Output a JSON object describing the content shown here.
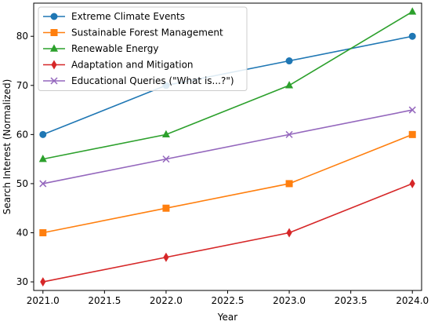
{
  "chart_data": {
    "type": "line",
    "title": "",
    "xlabel": "Year",
    "ylabel": "Search Interest (Normalized)",
    "x": [
      2021,
      2022,
      2023,
      2024
    ],
    "xlim": [
      2020.925,
      2024.075
    ],
    "ylim": [
      28.25,
      86.75
    ],
    "xticks": [
      2021.0,
      2021.5,
      2022.0,
      2022.5,
      2023.0,
      2023.5,
      2024.0
    ],
    "xtick_labels": [
      "2021.0",
      "2021.5",
      "2022.0",
      "2022.5",
      "2023.0",
      "2023.5",
      "2024.0"
    ],
    "yticks": [
      30,
      40,
      50,
      60,
      70,
      80
    ],
    "ytick_labels": [
      "30",
      "40",
      "50",
      "60",
      "70",
      "80"
    ],
    "grid": false,
    "legend_position": "top-left",
    "series": [
      {
        "name": "Extreme Climate Events",
        "values": [
          60,
          70,
          75,
          80
        ],
        "color": "#1f77b4",
        "marker": "circle"
      },
      {
        "name": "Sustainable Forest Management",
        "values": [
          40,
          45,
          50,
          60
        ],
        "color": "#ff7f0e",
        "marker": "square"
      },
      {
        "name": "Renewable Energy",
        "values": [
          55,
          60,
          70,
          85
        ],
        "color": "#2ca02c",
        "marker": "triangle"
      },
      {
        "name": "Adaptation and Mitigation",
        "values": [
          30,
          35,
          40,
          50
        ],
        "color": "#d62728",
        "marker": "diamond"
      },
      {
        "name": "Educational Queries (\"What is...?\")",
        "values": [
          50,
          55,
          60,
          65
        ],
        "color": "#9467bd",
        "marker": "x"
      }
    ]
  }
}
